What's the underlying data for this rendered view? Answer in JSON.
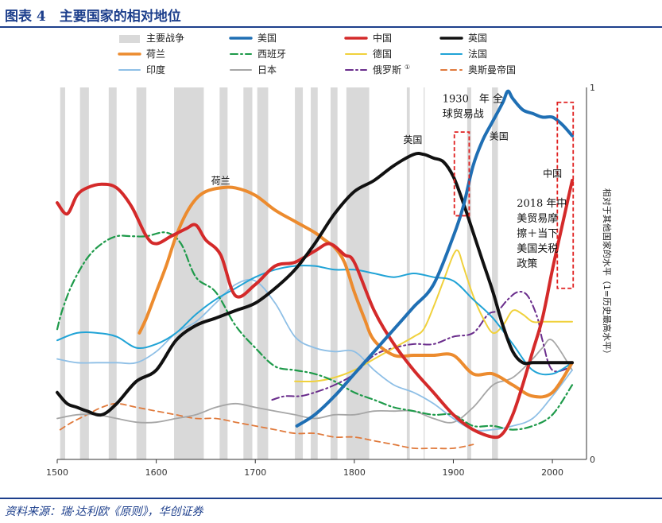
{
  "header": {
    "title": "图表 4　主要国家的相对地位"
  },
  "footer": {
    "source": "资料来源：瑞·达利欧《原则》，华创证券"
  },
  "chart_data": {
    "type": "line",
    "xlim": [
      1500,
      2020
    ],
    "ylim": [
      0,
      1
    ],
    "x_ticks": [
      "1500",
      "1600",
      "1700",
      "1800",
      "1900",
      "2000"
    ],
    "y_ticks": [
      "0",
      "1"
    ],
    "ylabel": "相对于其他国家的水平（1=历史最高水平）",
    "legend_placement": "top",
    "war_periods": [
      [
        1503,
        1508
      ],
      [
        1523,
        1532
      ],
      [
        1552,
        1560
      ],
      [
        1580,
        1590
      ],
      [
        1618,
        1648
      ],
      [
        1664,
        1672
      ],
      [
        1688,
        1697
      ],
      [
        1702,
        1713
      ],
      [
        1740,
        1748
      ],
      [
        1756,
        1763
      ],
      [
        1776,
        1783
      ],
      [
        1792,
        1815
      ],
      [
        1853,
        1856
      ],
      [
        1870,
        1871
      ],
      [
        1914,
        1918
      ],
      [
        1939,
        1945
      ]
    ],
    "series": [
      {
        "name": "主要战争",
        "color": "#d9d9d9",
        "style": "band",
        "x": [],
        "y": []
      },
      {
        "name": "美国",
        "color": "#1f6fb4",
        "width": 4,
        "dash": "",
        "x": [
          1742,
          1760,
          1780,
          1800,
          1820,
          1840,
          1860,
          1880,
          1900,
          1910,
          1920,
          1930,
          1940,
          1950,
          1955,
          1960,
          1970,
          1980,
          1990,
          2000,
          2010,
          2020
        ],
        "y": [
          0.09,
          0.12,
          0.17,
          0.23,
          0.29,
          0.35,
          0.41,
          0.47,
          0.6,
          0.68,
          0.79,
          0.86,
          0.91,
          0.96,
          0.99,
          0.97,
          0.94,
          0.93,
          0.92,
          0.92,
          0.9,
          0.87
        ]
      },
      {
        "name": "中国",
        "color": "#d42a2a",
        "width": 4,
        "dash": "",
        "x": [
          1500,
          1510,
          1520,
          1530,
          1545,
          1560,
          1575,
          1590,
          1600,
          1615,
          1630,
          1640,
          1650,
          1665,
          1680,
          1700,
          1720,
          1740,
          1760,
          1775,
          1790,
          1800,
          1820,
          1840,
          1860,
          1880,
          1900,
          1920,
          1940,
          1950,
          1960,
          1970,
          1980,
          1990,
          2000,
          2010,
          2020
        ],
        "y": [
          0.69,
          0.66,
          0.71,
          0.73,
          0.74,
          0.73,
          0.68,
          0.6,
          0.58,
          0.6,
          0.62,
          0.63,
          0.59,
          0.55,
          0.44,
          0.47,
          0.52,
          0.53,
          0.56,
          0.58,
          0.55,
          0.53,
          0.4,
          0.31,
          0.24,
          0.18,
          0.12,
          0.08,
          0.06,
          0.07,
          0.12,
          0.2,
          0.29,
          0.38,
          0.51,
          0.63,
          0.75
        ]
      },
      {
        "name": "英国",
        "color": "#111111",
        "width": 4,
        "dash": "",
        "x": [
          1500,
          1510,
          1520,
          1530,
          1545,
          1560,
          1580,
          1600,
          1620,
          1640,
          1660,
          1680,
          1700,
          1720,
          1740,
          1760,
          1780,
          1800,
          1820,
          1840,
          1860,
          1870,
          1880,
          1890,
          1900,
          1910,
          1920,
          1930,
          1940,
          1950,
          1960,
          1970,
          1980,
          1990,
          2000,
          2020
        ],
        "y": [
          0.18,
          0.15,
          0.14,
          0.13,
          0.12,
          0.15,
          0.21,
          0.24,
          0.32,
          0.36,
          0.38,
          0.4,
          0.42,
          0.46,
          0.51,
          0.58,
          0.66,
          0.72,
          0.75,
          0.79,
          0.82,
          0.82,
          0.81,
          0.8,
          0.76,
          0.69,
          0.61,
          0.53,
          0.45,
          0.36,
          0.29,
          0.26,
          0.26,
          0.26,
          0.26,
          0.26
        ]
      },
      {
        "name": "荷兰",
        "color": "#ec8b2e",
        "width": 4,
        "dash": "",
        "x": [
          1583,
          1590,
          1600,
          1610,
          1620,
          1630,
          1640,
          1650,
          1665,
          1680,
          1700,
          1720,
          1740,
          1760,
          1770,
          1780,
          1790,
          1800,
          1810,
          1820,
          1840,
          1860,
          1880,
          1900,
          1920,
          1940,
          1960,
          1980,
          2000,
          2020
        ],
        "y": [
          0.34,
          0.38,
          0.45,
          0.52,
          0.6,
          0.66,
          0.7,
          0.72,
          0.73,
          0.73,
          0.71,
          0.67,
          0.64,
          0.61,
          0.59,
          0.57,
          0.53,
          0.45,
          0.38,
          0.32,
          0.28,
          0.28,
          0.28,
          0.28,
          0.23,
          0.23,
          0.2,
          0.17,
          0.18,
          0.26
        ]
      },
      {
        "name": "西班牙",
        "color": "#1e9a4a",
        "width": 2.2,
        "dash": "9 4 2 4",
        "x": [
          1500,
          1505,
          1515,
          1530,
          1545,
          1560,
          1575,
          1590,
          1610,
          1625,
          1640,
          1660,
          1680,
          1700,
          1720,
          1740,
          1760,
          1780,
          1800,
          1820,
          1840,
          1860,
          1880,
          1900,
          1920,
          1940,
          1960,
          1980,
          2000,
          2020
        ],
        "y": [
          0.35,
          0.4,
          0.47,
          0.54,
          0.58,
          0.6,
          0.6,
          0.6,
          0.61,
          0.58,
          0.49,
          0.45,
          0.36,
          0.3,
          0.25,
          0.24,
          0.23,
          0.21,
          0.18,
          0.16,
          0.14,
          0.13,
          0.12,
          0.12,
          0.09,
          0.09,
          0.08,
          0.09,
          0.12,
          0.2
        ]
      },
      {
        "name": "德国",
        "color": "#f0d13c",
        "width": 2,
        "dash": "",
        "x": [
          1740,
          1760,
          1780,
          1800,
          1820,
          1840,
          1860,
          1870,
          1880,
          1890,
          1900,
          1905,
          1910,
          1920,
          1930,
          1940,
          1950,
          1960,
          1970,
          1980,
          1990,
          2000,
          2020
        ],
        "y": [
          0.21,
          0.21,
          0.22,
          0.24,
          0.27,
          0.3,
          0.33,
          0.35,
          0.41,
          0.48,
          0.55,
          0.56,
          0.52,
          0.44,
          0.38,
          0.34,
          0.36,
          0.4,
          0.39,
          0.37,
          0.37,
          0.37,
          0.37
        ]
      },
      {
        "name": "法国",
        "color": "#20a3d6",
        "width": 2,
        "dash": "",
        "x": [
          1500,
          1520,
          1540,
          1560,
          1580,
          1600,
          1620,
          1640,
          1660,
          1680,
          1700,
          1720,
          1740,
          1760,
          1780,
          1800,
          1820,
          1840,
          1860,
          1880,
          1900,
          1920,
          1940,
          1960,
          1980,
          2000,
          2020
        ],
        "y": [
          0.32,
          0.34,
          0.34,
          0.33,
          0.3,
          0.31,
          0.34,
          0.39,
          0.43,
          0.46,
          0.49,
          0.51,
          0.52,
          0.52,
          0.51,
          0.51,
          0.5,
          0.49,
          0.5,
          0.49,
          0.48,
          0.43,
          0.38,
          0.31,
          0.24,
          0.23,
          0.26
        ]
      },
      {
        "name": "印度",
        "color": "#8ebfe6",
        "width": 1.8,
        "dash": "",
        "x": [
          1500,
          1520,
          1540,
          1560,
          1580,
          1600,
          1620,
          1640,
          1660,
          1680,
          1700,
          1720,
          1740,
          1760,
          1780,
          1800,
          1820,
          1840,
          1860,
          1880,
          1900,
          1920,
          1940,
          1960,
          1980,
          2000,
          2020
        ],
        "y": [
          0.27,
          0.26,
          0.26,
          0.26,
          0.26,
          0.29,
          0.34,
          0.37,
          0.42,
          0.47,
          0.48,
          0.42,
          0.33,
          0.3,
          0.29,
          0.29,
          0.24,
          0.2,
          0.18,
          0.15,
          0.11,
          0.08,
          0.08,
          0.09,
          0.11,
          0.17,
          0.24
        ]
      },
      {
        "name": "日本",
        "color": "#a6a6a6",
        "width": 1.8,
        "dash": "",
        "x": [
          1500,
          1520,
          1540,
          1560,
          1580,
          1600,
          1620,
          1640,
          1660,
          1680,
          1700,
          1720,
          1740,
          1760,
          1780,
          1800,
          1820,
          1840,
          1860,
          1880,
          1900,
          1920,
          1940,
          1960,
          1980,
          1990,
          2000,
          2020
        ],
        "y": [
          0.11,
          0.12,
          0.12,
          0.11,
          0.1,
          0.1,
          0.11,
          0.12,
          0.14,
          0.15,
          0.14,
          0.13,
          0.12,
          0.11,
          0.12,
          0.12,
          0.13,
          0.13,
          0.13,
          0.11,
          0.1,
          0.14,
          0.2,
          0.22,
          0.27,
          0.3,
          0.32,
          0.24
        ]
      },
      {
        "name": "俄罗斯",
        "color": "#6a2d8c",
        "width": 2,
        "dash": "9 4 2 4",
        "x": [
          1717,
          1730,
          1745,
          1760,
          1780,
          1800,
          1820,
          1840,
          1860,
          1880,
          1900,
          1920,
          1935,
          1945,
          1955,
          1965,
          1975,
          1985,
          1990,
          2000,
          2020
        ],
        "y": [
          0.16,
          0.17,
          0.17,
          0.18,
          0.2,
          0.23,
          0.28,
          0.3,
          0.31,
          0.31,
          0.33,
          0.34,
          0.39,
          0.4,
          0.43,
          0.45,
          0.44,
          0.38,
          0.32,
          0.24,
          0.25
        ]
      },
      {
        "name": "奥斯曼帝国",
        "color": "#e07a3c",
        "width": 1.8,
        "dash": "7 5",
        "x": [
          1503,
          1515,
          1530,
          1545,
          1560,
          1580,
          1600,
          1620,
          1640,
          1660,
          1680,
          1700,
          1720,
          1740,
          1760,
          1780,
          1800,
          1820,
          1840,
          1860,
          1880,
          1900,
          1920
        ],
        "y": [
          0.08,
          0.1,
          0.12,
          0.14,
          0.15,
          0.14,
          0.13,
          0.12,
          0.11,
          0.11,
          0.1,
          0.09,
          0.08,
          0.07,
          0.07,
          0.06,
          0.06,
          0.05,
          0.04,
          0.03,
          0.03,
          0.03,
          0.04
        ]
      }
    ],
    "annotations": [
      {
        "text": "荷兰",
        "x": 1665,
        "y": 0.74
      },
      {
        "text": "英国",
        "x": 1859,
        "y": 0.85
      },
      {
        "text": "美国",
        "x": 1946,
        "y": 0.86
      },
      {
        "text": "中国",
        "x": 2000,
        "y": 0.76
      }
    ],
    "callouts": [
      {
        "lines": [
          "1930　年 全",
          "球贸易战"
        ],
        "x": 1889,
        "y": 0.96
      },
      {
        "lines": [
          "2018 年中",
          "美贸易摩",
          "擦＋当下",
          "美国关税",
          "政策"
        ],
        "x": 1964,
        "y": 0.68
      }
    ]
  }
}
